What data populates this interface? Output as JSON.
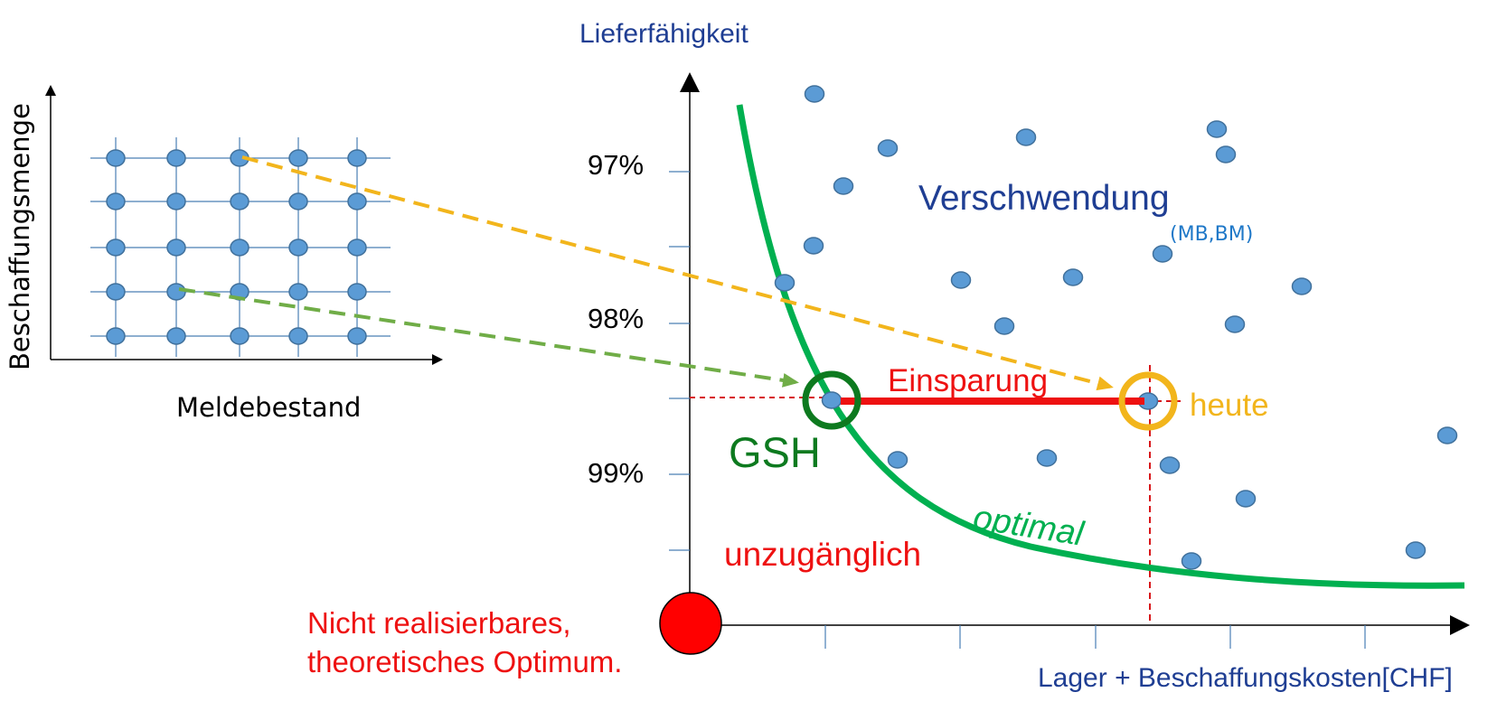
{
  "left_panel": {
    "ylabel": "Beschaffungsmenge",
    "xlabel": "Meldebestand",
    "grid_cols": 5,
    "grid_rows": 5
  },
  "main_plot": {
    "ylabel": "Lieferfähigkeit",
    "xlabel": "Lager + Beschaffungskosten[CHF]",
    "ytick_labels": [
      "97%",
      "98%",
      "99%"
    ],
    "regions": {
      "waste": "Verschwendung",
      "waste_sub": "(MB,BM)",
      "unreachable": "unzugänglich",
      "optimal": "optimal"
    },
    "points": {
      "gsh": "GSH",
      "today": "heute",
      "savings": "Einsparung"
    },
    "theory_note": [
      "Nicht realisierbares,",
      "theoretisches Optimum."
    ]
  },
  "colors": {
    "axis": "#000000",
    "grid": "#4a7fb5",
    "dot_fill": "#5b9bd5",
    "dot_stroke": "#41719c",
    "curve": "#00b050",
    "gsh_ring": "#0d7a1f",
    "today_ring": "#f2b51c",
    "savings": "#ee1111",
    "arrow_yellow": "#f2b51c",
    "arrow_green": "#70ad47",
    "dashed_red": "#d8161a"
  }
}
